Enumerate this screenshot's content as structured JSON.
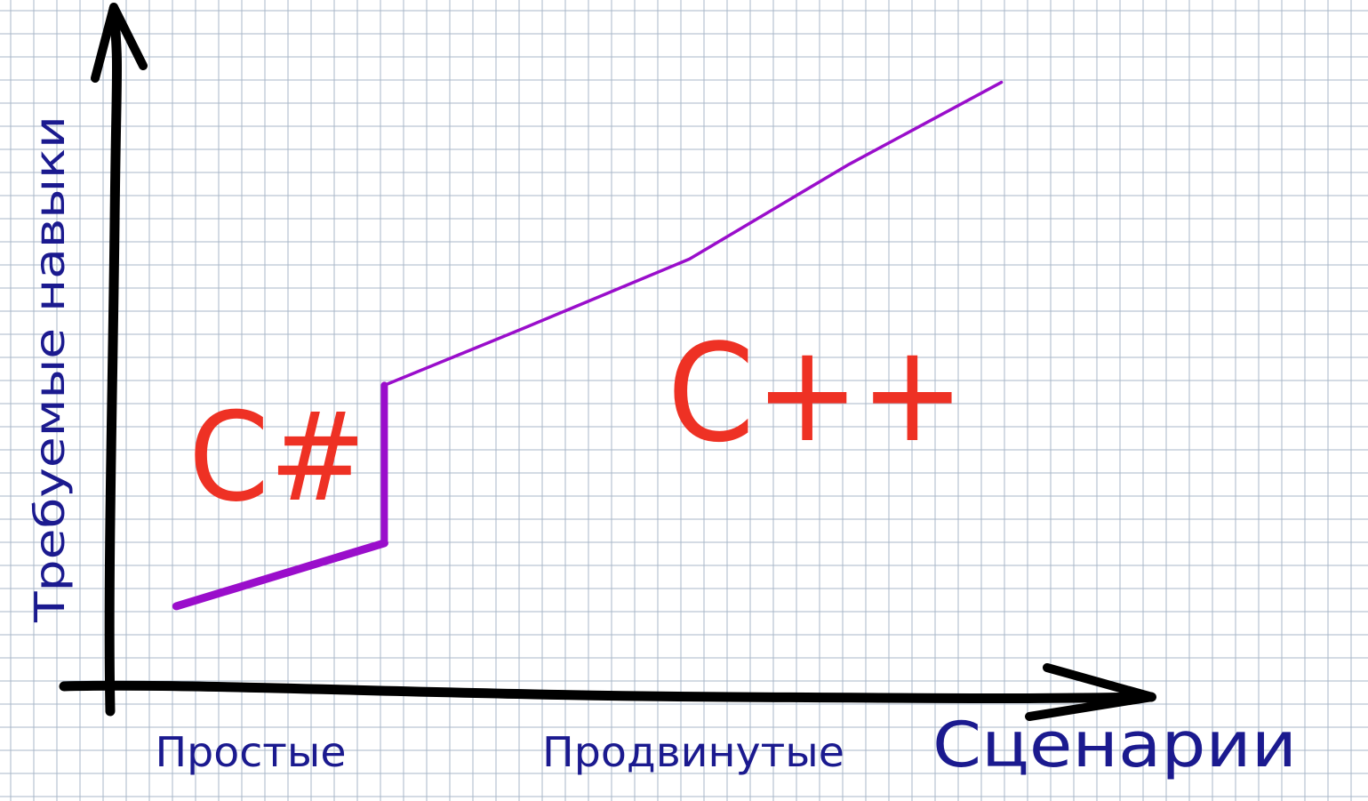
{
  "colors": {
    "background": "#ffffff",
    "grid": "#a9b7c8",
    "axis": "#000000",
    "curve": "#9a0ecb",
    "language_label": "#ee3124",
    "axis_label": "#1b1a8f"
  },
  "chart_data": {
    "type": "line",
    "grid": true,
    "xlabel": "Сценарии",
    "ylabel": "Требуемые навыки",
    "x_tick_labels": [
      "Простые",
      "Продвинутые"
    ],
    "annotations": [
      "C#",
      "C++"
    ],
    "series": [
      {
        "segments": [
          {
            "x": [
              0.8,
              3.8
            ],
            "y": [
              1.1,
              2.1
            ]
          },
          {
            "x": [
              3.8,
              3.8
            ],
            "y": [
              2.1,
              4.6
            ]
          },
          {
            "x": [
              3.8,
              5.8,
              8.2,
              10.5,
              12.7
            ],
            "y": [
              4.6,
              5.5,
              6.6,
              8.1,
              9.4
            ]
          }
        ]
      }
    ]
  }
}
